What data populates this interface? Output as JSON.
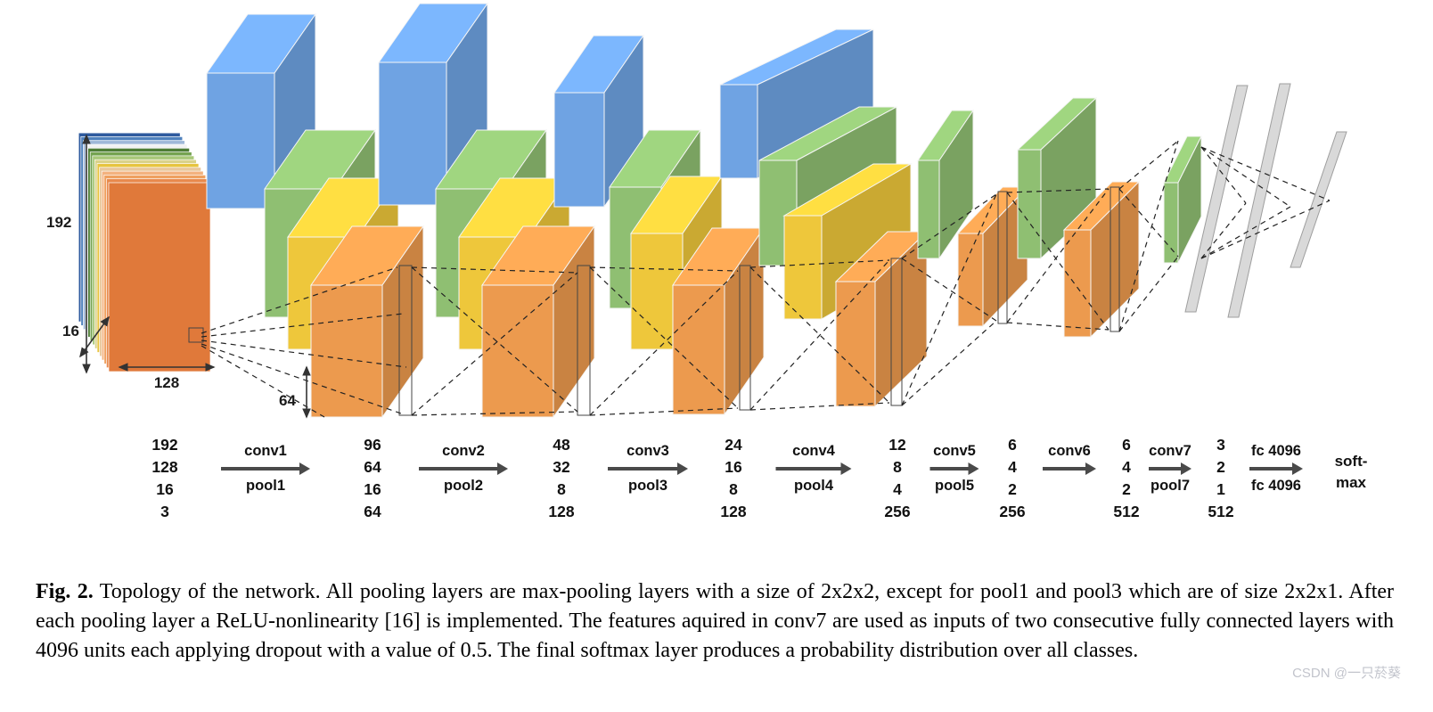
{
  "figure_caption": {
    "label": "Fig. 2.",
    "text": "Topology of the network. All pooling layers are max-pooling layers with a size of 2x2x2, except for pool1 and pool3 which are of size 2x2x1. After each pooling layer a ReLU-nonlinearity [16] is implemented. The features aquired in conv7 are used as inputs of two consecutive fully connected layers with 4096 units each applying dropout with a value of 0.5. The final softmax layer produces a probability distribution over all classes."
  },
  "watermark": "CSDN @一只菸葵",
  "diagram": {
    "input_labels": {
      "height": "192",
      "depth": "16",
      "width": "128"
    },
    "stage1_height_label": "64",
    "colors": {
      "blue": "#6fa3e3",
      "green": "#8fbf72",
      "yellow": "#eec73b",
      "orange": "#ec9a4e",
      "fc_gray": "#d9d9d9"
    },
    "stack_colors": [
      "#e0793a",
      "#e8894c",
      "#efa05f",
      "#f3b27e",
      "#e8c79b",
      "#e7c43f",
      "#d9d28a",
      "#a8c878",
      "#74a350",
      "#4e7d35",
      "#f2f2f2",
      "#9fb8d8",
      "#4f81bd",
      "#2e5a9e"
    ]
  },
  "footer": {
    "columns": [
      {
        "values": [
          "192",
          "128",
          "16",
          "3"
        ]
      },
      {
        "values": [
          "96",
          "64",
          "16",
          "64"
        ]
      },
      {
        "values": [
          "48",
          "32",
          "8",
          "128"
        ]
      },
      {
        "values": [
          "24",
          "16",
          "8",
          "128"
        ]
      },
      {
        "values": [
          "12",
          "8",
          "4",
          "256"
        ]
      },
      {
        "values": [
          "6",
          "4",
          "2",
          "256"
        ]
      },
      {
        "values": [
          "6",
          "4",
          "2",
          "512"
        ]
      },
      {
        "values": [
          "3",
          "2",
          "1",
          "512"
        ]
      }
    ],
    "ops": [
      {
        "top": "conv1",
        "bottom": "pool1"
      },
      {
        "top": "conv2",
        "bottom": "pool2"
      },
      {
        "top": "conv3",
        "bottom": "pool3"
      },
      {
        "top": "conv4",
        "bottom": "pool4"
      },
      {
        "top": "conv5",
        "bottom": "pool5"
      },
      {
        "top": "conv6",
        "bottom": ""
      },
      {
        "top": "conv7",
        "bottom": "pool7"
      },
      {
        "top": "fc 4096",
        "bottom": "fc 4096"
      }
    ],
    "softmax": {
      "line1": "soft-",
      "line2": "max"
    }
  }
}
